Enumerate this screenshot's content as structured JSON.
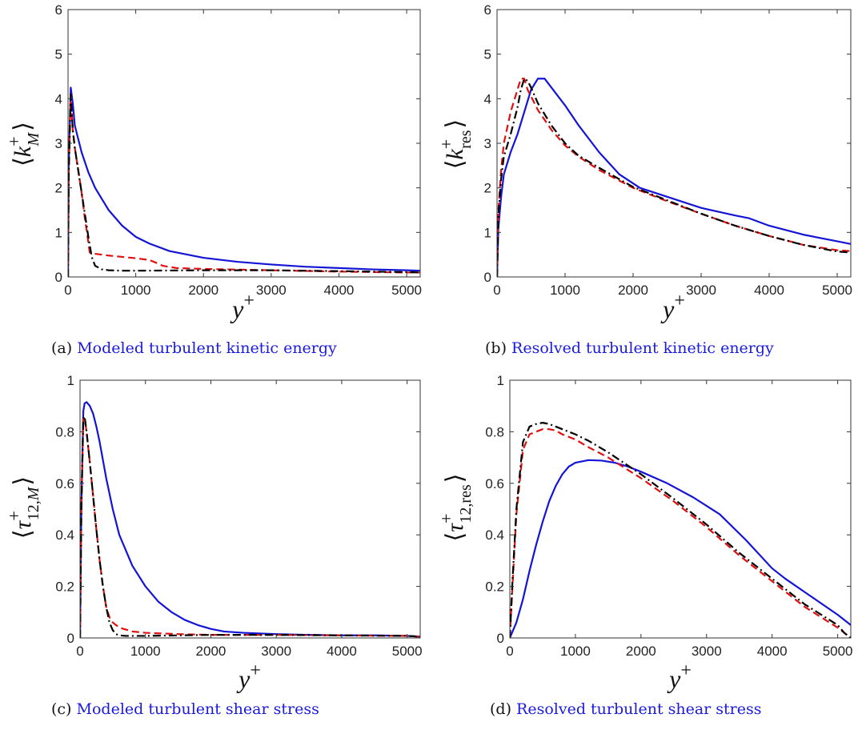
{
  "colors": {
    "solid": "#1414d6",
    "dashed": "#e01010",
    "dashdot": "#000000",
    "caption_text": "#1a1adf"
  },
  "chart_data": [
    {
      "type": "line",
      "caption_tag": "(a)",
      "caption": "Modeled turbulent kinetic energy",
      "xlabel": "y+",
      "ylabel": "⟨k+M⟩",
      "xlim": [
        0,
        5200
      ],
      "ylim": [
        0,
        6
      ],
      "xticks": [
        0,
        1000,
        2000,
        3000,
        4000,
        5000
      ],
      "yticks": [
        0,
        1,
        2,
        3,
        4,
        5,
        6
      ],
      "ytick_labels": [
        "0",
        "1",
        "2",
        "3",
        "4",
        "5",
        "6"
      ],
      "grid": false,
      "series": [
        {
          "style": "solid",
          "color": "#1414d6",
          "x": [
            0,
            10,
            40,
            70,
            100,
            200,
            300,
            400,
            600,
            800,
            1000,
            1200,
            1500,
            2000,
            2500,
            3000,
            3500,
            4000,
            4500,
            5000,
            5200
          ],
          "y": [
            0,
            2.5,
            4.25,
            3.9,
            3.4,
            2.8,
            2.35,
            2.0,
            1.5,
            1.15,
            0.9,
            0.75,
            0.58,
            0.43,
            0.34,
            0.28,
            0.23,
            0.2,
            0.17,
            0.15,
            0.14
          ]
        },
        {
          "style": "dashed",
          "color": "#e01010",
          "x": [
            0,
            10,
            40,
            70,
            100,
            150,
            200,
            250,
            280,
            320,
            400,
            600,
            800,
            1000,
            1200,
            1300,
            1400,
            1600,
            2000,
            3000,
            4000,
            5000,
            5200
          ],
          "y": [
            0,
            2.3,
            4.1,
            3.3,
            2.9,
            2.4,
            1.9,
            1.3,
            1.0,
            0.55,
            0.52,
            0.48,
            0.45,
            0.42,
            0.38,
            0.32,
            0.25,
            0.2,
            0.18,
            0.15,
            0.12,
            0.1,
            0.1
          ]
        },
        {
          "style": "dashdot",
          "color": "#000000",
          "x": [
            0,
            10,
            40,
            70,
            100,
            150,
            200,
            250,
            300,
            350,
            400,
            500,
            600,
            800,
            1000,
            2000,
            3000,
            4000,
            5000,
            5200
          ],
          "y": [
            0,
            2.3,
            4.1,
            3.3,
            2.9,
            2.4,
            1.9,
            1.4,
            0.9,
            0.45,
            0.25,
            0.17,
            0.15,
            0.14,
            0.14,
            0.15,
            0.15,
            0.13,
            0.11,
            0.1
          ]
        }
      ]
    },
    {
      "type": "line",
      "caption_tag": "(b)",
      "caption": "Resolved turbulent kinetic energy",
      "xlabel": "y+",
      "ylabel": "⟨k+res⟩",
      "xlim": [
        0,
        5200
      ],
      "ylim": [
        0,
        6
      ],
      "xticks": [
        0,
        1000,
        2000,
        3000,
        4000,
        5000
      ],
      "yticks": [
        0,
        1,
        2,
        3,
        4,
        5,
        6
      ],
      "ytick_labels": [
        "0",
        "1",
        "2",
        "3",
        "4",
        "5",
        "6"
      ],
      "grid": false,
      "series": [
        {
          "style": "solid",
          "color": "#1414d6",
          "x": [
            0,
            20,
            60,
            100,
            200,
            300,
            400,
            500,
            600,
            700,
            800,
            1000,
            1200,
            1500,
            1800,
            2100,
            2500,
            3000,
            3500,
            3700,
            4000,
            4500,
            5000,
            5200
          ],
          "y": [
            0,
            1.1,
            1.8,
            2.3,
            2.8,
            3.2,
            3.7,
            4.2,
            4.45,
            4.45,
            4.25,
            3.85,
            3.4,
            2.8,
            2.3,
            2.0,
            1.8,
            1.55,
            1.38,
            1.32,
            1.15,
            0.95,
            0.8,
            0.74
          ]
        },
        {
          "style": "dashed",
          "color": "#e01010",
          "x": [
            0,
            20,
            60,
            100,
            200,
            300,
            350,
            400,
            450,
            500,
            600,
            800,
            1000,
            1200,
            1500,
            2000,
            2500,
            3000,
            3500,
            4000,
            4500,
            5000,
            5200
          ],
          "y": [
            0,
            1.5,
            2.4,
            3.0,
            3.7,
            4.2,
            4.45,
            4.45,
            4.2,
            4.05,
            3.75,
            3.3,
            2.95,
            2.7,
            2.4,
            2.0,
            1.7,
            1.42,
            1.15,
            0.92,
            0.72,
            0.6,
            0.58
          ]
        },
        {
          "style": "dashdot",
          "color": "#000000",
          "x": [
            0,
            20,
            60,
            100,
            200,
            300,
            350,
            400,
            450,
            500,
            600,
            800,
            1000,
            1200,
            1500,
            2000,
            2500,
            3000,
            3500,
            4000,
            4500,
            5000,
            5200
          ],
          "y": [
            0,
            1.4,
            2.2,
            2.7,
            3.2,
            3.8,
            4.2,
            4.45,
            4.4,
            4.25,
            3.9,
            3.4,
            3.0,
            2.72,
            2.45,
            2.02,
            1.72,
            1.42,
            1.15,
            0.92,
            0.72,
            0.57,
            0.55
          ]
        }
      ]
    },
    {
      "type": "line",
      "caption_tag": "(c)",
      "caption": "Modeled turbulent shear stress",
      "xlabel": "y+",
      "ylabel": "⟨τ+12,M⟩",
      "xlim": [
        0,
        5200
      ],
      "ylim": [
        0,
        1
      ],
      "xticks": [
        0,
        1000,
        2000,
        3000,
        4000,
        5000
      ],
      "yticks": [
        0,
        0.2,
        0.4,
        0.6,
        0.8,
        1
      ],
      "ytick_labels": [
        "0",
        "0.2",
        "0.4",
        "0.6",
        "0.8",
        "1"
      ],
      "grid": false,
      "series": [
        {
          "style": "solid",
          "color": "#1414d6",
          "x": [
            0,
            20,
            50,
            70,
            100,
            150,
            200,
            250,
            300,
            400,
            500,
            600,
            800,
            1000,
            1200,
            1400,
            1600,
            1800,
            2000,
            2200,
            2500,
            3000,
            3500,
            4000,
            4500,
            5000,
            5200
          ],
          "y": [
            0,
            0.5,
            0.88,
            0.91,
            0.915,
            0.9,
            0.87,
            0.82,
            0.76,
            0.62,
            0.5,
            0.4,
            0.28,
            0.2,
            0.14,
            0.1,
            0.07,
            0.05,
            0.035,
            0.025,
            0.02,
            0.015,
            0.012,
            0.01,
            0.01,
            0.008,
            0.005
          ]
        },
        {
          "style": "dashed",
          "color": "#e01010",
          "x": [
            0,
            20,
            50,
            70,
            100,
            150,
            200,
            250,
            300,
            350,
            400,
            450,
            500,
            600,
            800,
            1000,
            1500,
            2000,
            3000,
            4000,
            5000,
            5200
          ],
          "y": [
            0,
            0.5,
            0.85,
            0.85,
            0.8,
            0.68,
            0.55,
            0.42,
            0.3,
            0.2,
            0.12,
            0.08,
            0.06,
            0.04,
            0.025,
            0.02,
            0.015,
            0.012,
            0.012,
            0.01,
            0.008,
            0.005
          ]
        },
        {
          "style": "dashdot",
          "color": "#000000",
          "x": [
            0,
            20,
            50,
            70,
            100,
            150,
            200,
            250,
            300,
            350,
            400,
            450,
            500,
            550,
            600,
            700,
            800,
            1000,
            1500,
            2000,
            3000,
            4000,
            5000,
            5200
          ],
          "y": [
            0,
            0.5,
            0.85,
            0.86,
            0.8,
            0.68,
            0.55,
            0.42,
            0.3,
            0.2,
            0.12,
            0.06,
            0.03,
            0.015,
            0.01,
            0.008,
            0.008,
            0.008,
            0.01,
            0.012,
            0.012,
            0.01,
            0.008,
            0.005
          ]
        }
      ]
    },
    {
      "type": "line",
      "caption_tag": "(d)",
      "caption": "Resolved turbulent shear stress",
      "xlabel": "y+",
      "ylabel": "⟨τ+12,res⟩",
      "xlim": [
        0,
        5200
      ],
      "ylim": [
        0,
        1
      ],
      "xticks": [
        0,
        1000,
        2000,
        3000,
        4000,
        5000
      ],
      "yticks": [
        0,
        0.2,
        0.4,
        0.6,
        0.8,
        1
      ],
      "ytick_labels": [
        "0",
        "0.2",
        "0.4",
        "0.6",
        "0.8",
        "1"
      ],
      "grid": false,
      "series": [
        {
          "style": "solid",
          "color": "#1414d6",
          "x": [
            0,
            100,
            200,
            300,
            400,
            500,
            600,
            700,
            800,
            900,
            1000,
            1200,
            1400,
            1600,
            1800,
            2000,
            2400,
            2800,
            3200,
            3600,
            4000,
            4200,
            4600,
            5000,
            5200
          ],
          "y": [
            0,
            0.06,
            0.15,
            0.26,
            0.36,
            0.45,
            0.53,
            0.59,
            0.635,
            0.665,
            0.68,
            0.69,
            0.688,
            0.68,
            0.665,
            0.645,
            0.6,
            0.545,
            0.48,
            0.38,
            0.27,
            0.23,
            0.16,
            0.09,
            0.05
          ]
        },
        {
          "style": "dashed",
          "color": "#e01010",
          "x": [
            0,
            40,
            100,
            200,
            300,
            400,
            500,
            600,
            700,
            800,
            1000,
            1200,
            1500,
            2000,
            2500,
            3000,
            3500,
            4000,
            4500,
            5000,
            5100,
            5200
          ],
          "y": [
            0,
            0.2,
            0.48,
            0.73,
            0.79,
            0.8,
            0.81,
            0.81,
            0.805,
            0.79,
            0.77,
            0.74,
            0.7,
            0.62,
            0.53,
            0.43,
            0.32,
            0.22,
            0.12,
            0.04,
            0.02,
            0
          ]
        },
        {
          "style": "dashdot",
          "color": "#000000",
          "x": [
            0,
            40,
            100,
            200,
            300,
            400,
            500,
            600,
            700,
            800,
            1000,
            1200,
            1500,
            2000,
            2500,
            3000,
            3500,
            4000,
            4500,
            5000,
            5100,
            5200
          ],
          "y": [
            0,
            0.22,
            0.5,
            0.76,
            0.82,
            0.83,
            0.835,
            0.83,
            0.82,
            0.81,
            0.79,
            0.765,
            0.72,
            0.635,
            0.54,
            0.44,
            0.33,
            0.23,
            0.13,
            0.05,
            0.02,
            0
          ]
        }
      ]
    }
  ]
}
